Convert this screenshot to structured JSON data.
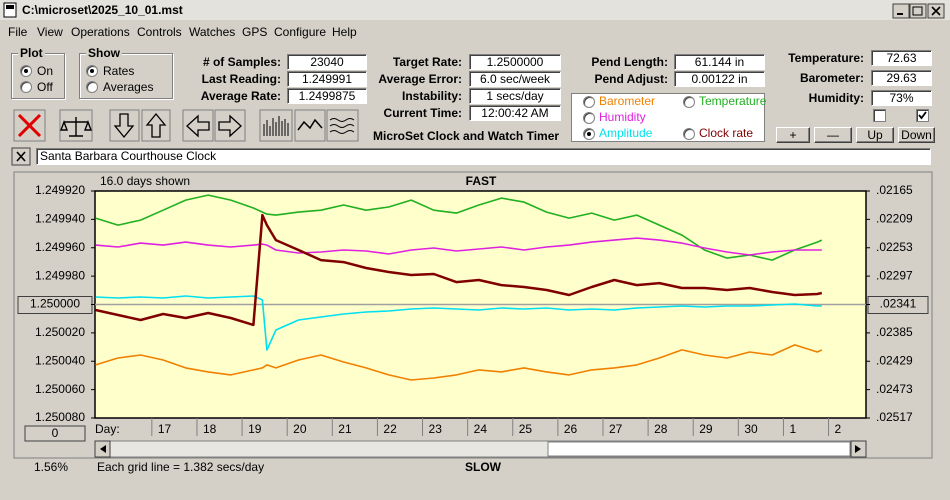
{
  "window": {
    "title": "C:\\microset\\2025_10_01.mst"
  },
  "menu": [
    "File",
    "View",
    "Operations",
    "Controls",
    "Watches",
    "GPS",
    "Configure",
    "Help"
  ],
  "plot_group": {
    "label": "Plot",
    "options": [
      "On",
      "Off"
    ],
    "selected": "On"
  },
  "show_group": {
    "label": "Show",
    "options": [
      "Rates",
      "Averages"
    ],
    "selected": "Rates"
  },
  "fields_1": [
    {
      "label": "# of Samples:",
      "value": "23040"
    },
    {
      "label": "Last Reading:",
      "value": "1.249991"
    },
    {
      "label": "Average Rate:",
      "value": "1.2499875"
    }
  ],
  "fields_2": [
    {
      "label": "Target Rate:",
      "value": "1.2500000"
    },
    {
      "label": "Average Error:",
      "value": "6.0 sec/week"
    },
    {
      "label": "Instability:",
      "value": "1 secs/day"
    },
    {
      "label": "Current Time:",
      "value": "12:00:42 AM"
    }
  ],
  "fields_3": [
    {
      "label": "Pend Length:",
      "value": "61.144 in"
    },
    {
      "label": "Pend Adjust:",
      "value": "0.00122 in"
    }
  ],
  "fields_4": [
    {
      "label": "Temperature:",
      "value": "72.63"
    },
    {
      "label": "Barometer:",
      "value": "29.63"
    },
    {
      "label": "Humidity:",
      "value": "73%"
    }
  ],
  "checkboxes": [
    false,
    true
  ],
  "caption": "MicroSet Clock and Watch Timer",
  "buttons": [
    "+",
    "—",
    "Up",
    "Down"
  ],
  "clock_name": "Santa Barbara Courthouse Clock",
  "status_percent": "1.56%",
  "chart_data": {
    "type": "line",
    "top_label": "FAST",
    "bottom_label": "SLOW",
    "days_shown": "16.0 days shown",
    "x_label": "Day:",
    "footer": "Each grid line = 1.382 secs/day",
    "offset_button": "0",
    "selected_series": "Amplitude",
    "xlim": [
      15.74,
      32.83
    ],
    "xticks": [
      17,
      18,
      19,
      20,
      21,
      22,
      23,
      24,
      25,
      26,
      27,
      28,
      29,
      30,
      {
        "value": 31,
        "label": "1"
      },
      {
        "value": 32,
        "label": "2"
      }
    ],
    "ylim": [
      1.25008,
      1.24992
    ],
    "yticks": [
      {
        "value": 1.24992,
        "label": "1.249920"
      },
      {
        "value": 1.24994,
        "label": "1.249940"
      },
      {
        "value": 1.24996,
        "label": "1.249960"
      },
      {
        "value": 1.24998,
        "label": "1.249980"
      },
      {
        "value": 1.25,
        "label": "1.250000"
      },
      {
        "value": 1.25002,
        "label": "1.250020"
      },
      {
        "value": 1.25004,
        "label": "1.250040"
      },
      {
        "value": 1.25006,
        "label": "1.250060"
      },
      {
        "value": 1.25008,
        "label": "1.250080"
      }
    ],
    "y2lim": [
      0.02517,
      0.02165
    ],
    "y2ticks": [
      {
        "value": 0.02165,
        "label": ".02165"
      },
      {
        "value": 0.02209,
        "label": ".02209"
      },
      {
        "value": 0.02253,
        "label": ".02253"
      },
      {
        "value": 0.02297,
        "label": ".02297"
      },
      {
        "value": 0.02341,
        "label": ".02341"
      },
      {
        "value": 0.02385,
        "label": ".02385"
      },
      {
        "value": 0.02429,
        "label": ".02429"
      },
      {
        "value": 0.02473,
        "label": ".02473"
      },
      {
        "value": 0.02517,
        "label": ".02517"
      }
    ],
    "x": [
      15.75,
      16.25,
      16.75,
      17.25,
      17.75,
      18.25,
      18.75,
      19.25,
      19.45,
      19.55,
      19.75,
      20.25,
      20.75,
      21.25,
      21.75,
      22.25,
      22.75,
      23.25,
      23.75,
      24.25,
      24.75,
      25.25,
      25.75,
      26.25,
      26.75,
      27.25,
      27.75,
      28.25,
      28.75,
      29.25,
      29.75,
      30.25,
      30.75,
      31.25,
      31.75,
      31.85
    ],
    "series": [
      {
        "name": "Barometer",
        "color": "#f08000",
        "values": [
          1.2500426,
          1.2500377,
          1.2500356,
          1.2500391,
          1.2500447,
          1.2500475,
          1.2500496,
          1.2500461,
          1.2500447,
          1.2500426,
          1.2500447,
          1.2500391,
          1.2500356,
          1.2500405,
          1.2500447,
          1.2500496,
          1.2500532,
          1.2500518,
          1.2500496,
          1.2500461,
          1.2500475,
          1.2500447,
          1.2500475,
          1.2500496,
          1.2500461,
          1.2500447,
          1.2500426,
          1.2500377,
          1.250032,
          1.2500356,
          1.2500377,
          1.2500335,
          1.2500356,
          1.2500285,
          1.2500335,
          1.250032
        ]
      },
      {
        "name": "Temperature",
        "color": "#20b020",
        "values": [
          1.2499391,
          1.249944,
          1.2499405,
          1.2499335,
          1.2499264,
          1.2499229,
          1.2499264,
          1.249932,
          1.2499349,
          1.2499363,
          1.249937,
          1.2499349,
          1.2499335,
          1.2499299,
          1.2499335,
          1.2499313,
          1.2499264,
          1.2499335,
          1.2499356,
          1.2499299,
          1.249925,
          1.2499278,
          1.2499349,
          1.2499391,
          1.2499356,
          1.2499405,
          1.249937,
          1.249944,
          1.2499511,
          1.2499616,
          1.2499673,
          1.2499651,
          1.2499687,
          1.2499616,
          1.249956,
          1.2499546
        ]
      },
      {
        "name": "Humidity",
        "color": "#e020e0",
        "values": [
          1.2499581,
          1.2499595,
          1.2499567,
          1.2499581,
          1.249956,
          1.2499581,
          1.2499595,
          1.2499581,
          1.2499574,
          1.2499581,
          1.2499616,
          1.2499637,
          1.249963,
          1.2499616,
          1.2499623,
          1.2499644,
          1.2499616,
          1.2499602,
          1.2499623,
          1.2499609,
          1.2499595,
          1.2499616,
          1.2499595,
          1.2499581,
          1.249956,
          1.2499546,
          1.2499532,
          1.2499546,
          1.2499567,
          1.2499602,
          1.249963,
          1.2499651,
          1.249963,
          1.2499616,
          1.2499616,
          1.2499616
        ]
      },
      {
        "name": "Amplitude",
        "color": "#00e0f0",
        "axis": "y2",
        "values": [
          0.023294,
          0.023309,
          0.023294,
          0.023309,
          0.023278,
          0.023309,
          0.023294,
          0.023278,
          0.02334,
          0.024116,
          0.023805,
          0.02365,
          0.023604,
          0.023557,
          0.023526,
          0.023511,
          0.02348,
          0.023464,
          0.02348,
          0.023495,
          0.023464,
          0.02348,
          0.023464,
          0.023495,
          0.02348,
          0.023495,
          0.023464,
          0.023449,
          0.023433,
          0.023449,
          0.023433,
          0.023433,
          0.023418,
          0.023402,
          0.023433,
          0.023433
        ]
      },
      {
        "name": "Clock rate",
        "color": "#800000",
        "values": [
          1.2500039,
          1.2500074,
          1.2500109,
          1.2500067,
          1.2500095,
          1.250006,
          1.2500095,
          1.2500144,
          1.249937,
          1.249944,
          1.2499546,
          1.2499616,
          1.2499687,
          1.2499701,
          1.2499743,
          1.2499771,
          1.2499792,
          1.2499785,
          1.2499842,
          1.2499827,
          1.2499863,
          1.2499877,
          1.2499898,
          1.2499933,
          1.2499877,
          1.2499827,
          1.2499863,
          1.2499849,
          1.2499884,
          1.2499884,
          1.2499898,
          1.2499884,
          1.2499912,
          1.2499933,
          1.2499926,
          1.2499919
        ]
      }
    ]
  }
}
